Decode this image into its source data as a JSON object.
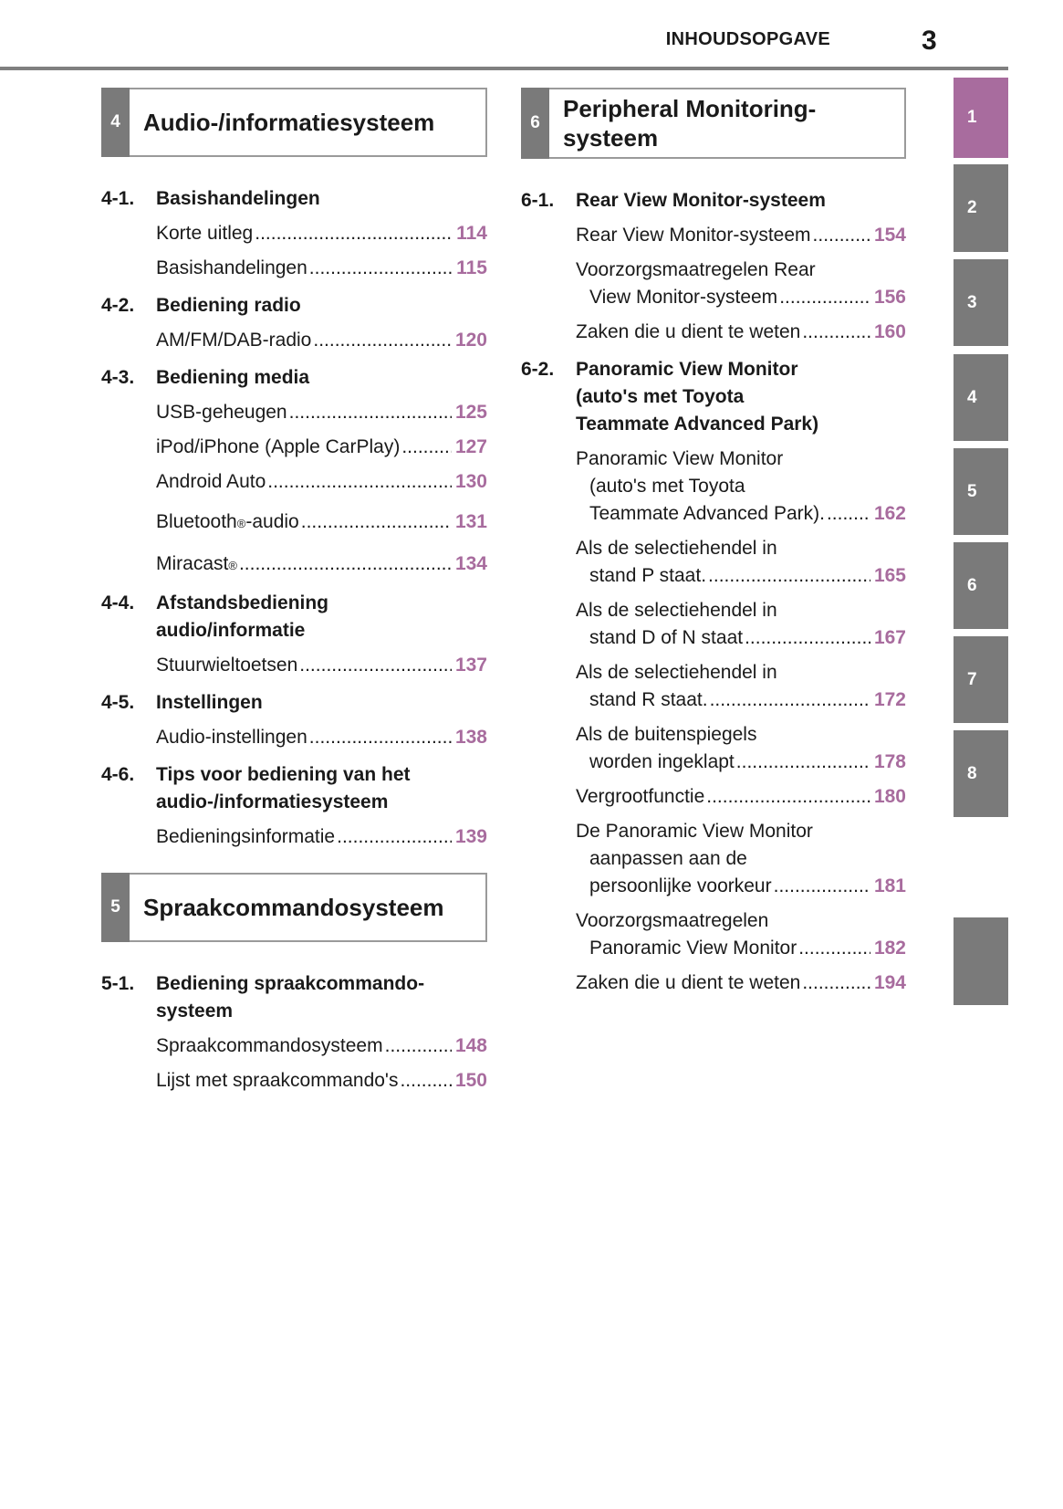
{
  "header": {
    "title": "INHOUDSOPGAVE",
    "page_number": "3"
  },
  "colors": {
    "accent": "#a86c9e",
    "tab_gray": "#7a7a7a"
  },
  "tabs": [
    {
      "label": "1",
      "active": true
    },
    {
      "label": "2"
    },
    {
      "label": "3"
    },
    {
      "label": "4"
    },
    {
      "label": "5"
    },
    {
      "label": "6"
    },
    {
      "label": "7"
    },
    {
      "label": "8"
    },
    {
      "label": ""
    }
  ],
  "chapters": [
    {
      "num": "4",
      "title": "Audio-/informatiesysteem",
      "subs": [
        {
          "num": "4-1.",
          "title": [
            "Basishandelingen"
          ],
          "entries": [
            {
              "lines": [
                "Korte uitleg"
              ],
              "page": "114"
            },
            {
              "lines": [
                "Basishandelingen"
              ],
              "page": "115"
            }
          ]
        },
        {
          "num": "4-2.",
          "title": [
            "Bediening radio"
          ],
          "entries": [
            {
              "lines": [
                "AM/FM/DAB-radio"
              ],
              "page": "120"
            }
          ]
        },
        {
          "num": "4-3.",
          "title": [
            "Bediening media"
          ],
          "entries": [
            {
              "lines": [
                "USB-geheugen"
              ],
              "page": "125"
            },
            {
              "lines": [
                "iPod/iPhone (Apple CarPlay)"
              ],
              "page": "127"
            },
            {
              "lines": [
                "Android Auto"
              ],
              "page": "130"
            },
            {
              "lines": [
                "Bluetooth"
              ],
              "sup": "®",
              "after": "-audio",
              "page": "131"
            },
            {
              "lines": [
                "Miracast"
              ],
              "sup": "®",
              "after": "",
              "page": "134"
            }
          ]
        },
        {
          "num": "4-4.",
          "title": [
            "Afstandsbediening",
            "audio/informatie"
          ],
          "entries": [
            {
              "lines": [
                "Stuurwieltoetsen"
              ],
              "page": "137"
            }
          ]
        },
        {
          "num": "4-5.",
          "title": [
            "Instellingen"
          ],
          "entries": [
            {
              "lines": [
                "Audio-instellingen"
              ],
              "page": "138"
            }
          ]
        },
        {
          "num": "4-6.",
          "title": [
            "Tips voor bediening van het",
            "audio-/informatiesysteem"
          ],
          "entries": [
            {
              "lines": [
                "Bedieningsinformatie"
              ],
              "page": "139"
            }
          ]
        }
      ]
    },
    {
      "num": "5",
      "title": "Spraakcommandosysteem",
      "subs": [
        {
          "num": "5-1.",
          "title": [
            "Bediening spraakcommando-",
            "systeem"
          ],
          "entries": [
            {
              "lines": [
                "Spraakcommandosysteem"
              ],
              "page": "148"
            },
            {
              "lines": [
                "Lijst met spraakcommando's"
              ],
              "page": "150"
            }
          ]
        }
      ]
    },
    {
      "num": "6",
      "title": "Peripheral Monitoring-systeem",
      "title_lines": [
        "Peripheral Monitoring-",
        "systeem"
      ],
      "subs": [
        {
          "num": "6-1.",
          "title": [
            "Rear View Monitor-systeem"
          ],
          "entries": [
            {
              "lines": [
                "Rear View Monitor-systeem"
              ],
              "page": "154"
            },
            {
              "lines": [
                "Voorzorgsmaatregelen Rear",
                "View Monitor-systeem"
              ],
              "page": "156"
            },
            {
              "lines": [
                "Zaken die u dient te weten"
              ],
              "page": "160"
            }
          ]
        },
        {
          "num": "6-2.",
          "title": [
            "Panoramic View Monitor",
            "(auto's met Toyota",
            "Teammate Advanced Park)"
          ],
          "entries": [
            {
              "lines": [
                "Panoramic View Monitor",
                "(auto's met Toyota",
                "Teammate Advanced Park)."
              ],
              "page": "162"
            },
            {
              "lines": [
                "Als de selectiehendel in",
                "stand P staat."
              ],
              "page": "165"
            },
            {
              "lines": [
                "Als de selectiehendel in",
                "stand D of N staat"
              ],
              "page": "167"
            },
            {
              "lines": [
                "Als de selectiehendel in",
                "stand R staat."
              ],
              "page": "172"
            },
            {
              "lines": [
                "Als de buitenspiegels",
                "worden ingeklapt"
              ],
              "page": "178"
            },
            {
              "lines": [
                "Vergrootfunctie"
              ],
              "page": "180"
            },
            {
              "lines": [
                "De Panoramic View Monitor",
                "aanpassen aan de",
                "persoonlijke voorkeur"
              ],
              "page": "181"
            },
            {
              "lines": [
                "Voorzorgsmaatregelen",
                "Panoramic View Monitor"
              ],
              "page": "182"
            },
            {
              "lines": [
                "Zaken die u dient te weten"
              ],
              "page": "194"
            }
          ]
        }
      ]
    }
  ]
}
